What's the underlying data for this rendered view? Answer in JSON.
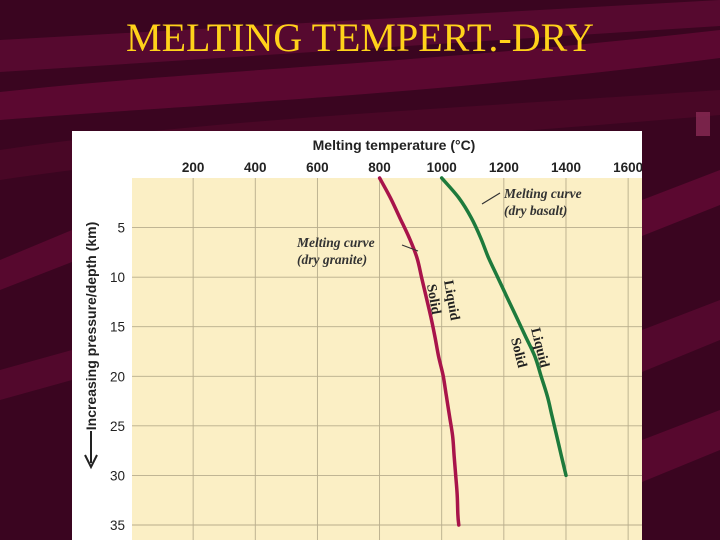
{
  "slide": {
    "title": "MELTING TEMPERT.-DRY",
    "colors": {
      "background": "#3a0520",
      "stripe": "#6a0a38",
      "title": "#ffd21a"
    }
  },
  "chart_data": {
    "type": "line",
    "title": "",
    "xlabel": "Melting temperature (°C)",
    "ylabel": "Increasing pressure/depth (km)",
    "xlim": [
      0,
      1650
    ],
    "ylim": [
      0,
      35
    ],
    "x_axis_position": "top",
    "y_inverted": true,
    "grid": true,
    "x_ticks": [
      200,
      400,
      600,
      800,
      1000,
      1200,
      1400,
      1600
    ],
    "y_ticks": [
      5,
      10,
      15,
      20,
      25,
      30,
      35
    ],
    "series": [
      {
        "key": "granite",
        "color": "#a8144a",
        "points": [
          [
            800,
            0
          ],
          [
            835,
            2
          ],
          [
            865,
            4
          ],
          [
            895,
            6
          ],
          [
            920,
            8
          ],
          [
            935,
            10
          ],
          [
            950,
            12
          ],
          [
            965,
            14
          ],
          [
            978,
            16
          ],
          [
            990,
            18
          ],
          [
            1005,
            20
          ],
          [
            1015,
            22
          ],
          [
            1025,
            24
          ],
          [
            1035,
            26
          ],
          [
            1040,
            28
          ],
          [
            1045,
            30
          ],
          [
            1050,
            32
          ],
          [
            1052,
            34
          ],
          [
            1055,
            35
          ]
        ]
      },
      {
        "key": "basalt",
        "color": "#1e7a3c",
        "points": [
          [
            1000,
            0
          ],
          [
            1055,
            2
          ],
          [
            1095,
            4
          ],
          [
            1125,
            6
          ],
          [
            1150,
            8
          ],
          [
            1180,
            10
          ],
          [
            1210,
            12
          ],
          [
            1240,
            14
          ],
          [
            1270,
            16
          ],
          [
            1300,
            18
          ],
          [
            1320,
            20
          ],
          [
            1340,
            22
          ],
          [
            1355,
            24
          ],
          [
            1370,
            26
          ],
          [
            1385,
            28
          ],
          [
            1400,
            30
          ]
        ]
      }
    ],
    "annotations": [
      {
        "key": "granite_curve",
        "line1": "Melting curve",
        "line2": "(dry granite)"
      },
      {
        "key": "basalt_curve",
        "line1": "Melting curve",
        "line2": "(dry basalt)"
      }
    ],
    "phase_labels": {
      "granite_liquid": "Liquid",
      "granite_solid": "Solid",
      "basalt_liquid": "Liquid",
      "basalt_solid": "Solid"
    },
    "colors": {
      "plot_background": "#fbefc5",
      "grid": "#b8ad8c",
      "figure_background": "#ffffff"
    }
  }
}
